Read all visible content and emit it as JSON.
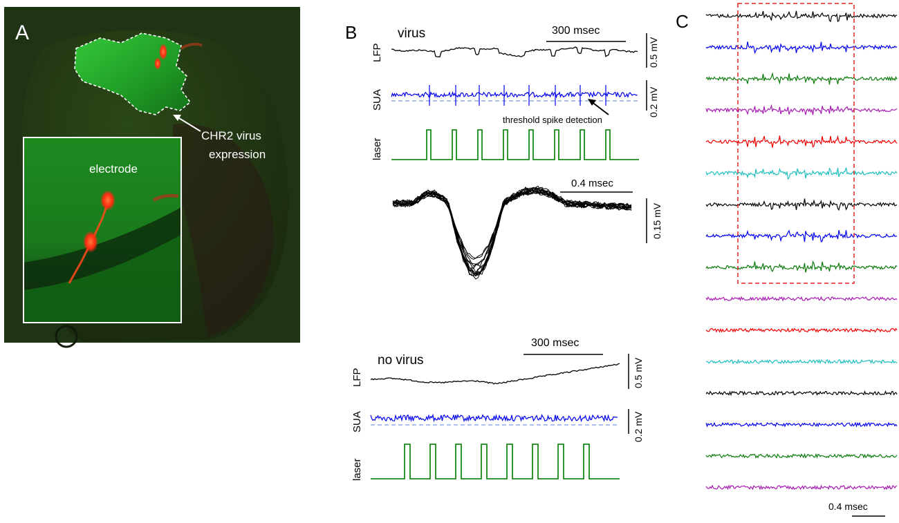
{
  "panel_a": {
    "label": "A",
    "virus_annotation_line1": "CHR2 virus",
    "virus_annotation_line2": "expression",
    "electrode_label": "electrode"
  },
  "panel_b": {
    "label": "B",
    "virus": {
      "title": "virus",
      "time_scale": "300 msec",
      "lfp_label": "LFP",
      "sua_label": "SUA",
      "laser_label": "laser",
      "lfp_scale": "0.5 mV",
      "sua_scale": "0.2 mV",
      "threshold_annotation": "threshold spike detection",
      "laser_pulse_count": 8
    },
    "waveform": {
      "time_scale": "0.4 msec",
      "amp_scale": "0.15 mV",
      "trace_count": 14
    },
    "no_virus": {
      "title": "no virus",
      "time_scale": "300 msec",
      "lfp_label": "LFP",
      "sua_label": "SUA",
      "laser_label": "laser",
      "lfp_scale": "0.5 mV",
      "sua_scale": "0.2 mV",
      "laser_pulse_count": 8
    }
  },
  "panel_c": {
    "label": "C",
    "time_scale": "0.4 msec",
    "channel_count": 16,
    "responsive_channel_count": 9,
    "channel_colors": [
      "#000000",
      "#0000ee",
      "#0a7a0a",
      "#a61ab1",
      "#ee0000",
      "#1fbfbf",
      "#000000",
      "#0000ee",
      "#0a7a0a",
      "#a61ab1",
      "#ee0000",
      "#1fbfbf",
      "#000000",
      "#0000ee",
      "#0a7a0a",
      "#a61ab1"
    ],
    "highlight_color": "#e02020"
  },
  "colors": {
    "sua_trace": "#0000ee",
    "threshold_line": "#8fa8e8",
    "laser_trace": "#1a8a1a",
    "fluorescence_green": "#27b92c",
    "electrode_red": "#ff3a1a"
  }
}
